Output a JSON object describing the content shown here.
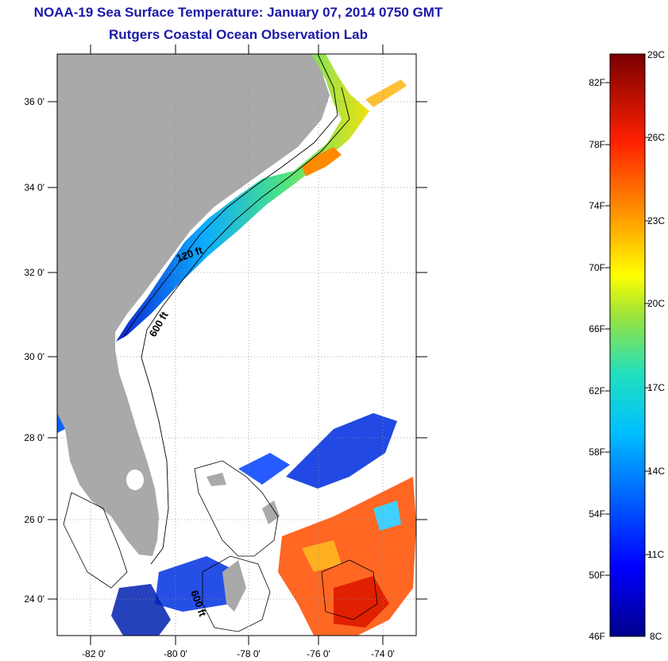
{
  "header": {
    "title": "NOAA-19 Sea Surface Temperature:  January 07, 2014 0750 GMT",
    "subtitle": "Rutgers Coastal Ocean Observation Lab"
  },
  "map": {
    "lat_labels": [
      "36 0'",
      "34 0'",
      "32 0'",
      "30 0'",
      "28 0'",
      "26 0'",
      "24 0'"
    ],
    "lon_labels": [
      "-82 0'",
      "-80 0'",
      "-78 0'",
      "-76 0'",
      "-74 0'"
    ],
    "contours": [
      "120 ft",
      "600 ft",
      "600 ft"
    ],
    "land_color": "#a9a9a9",
    "grid": true
  },
  "colorbar": {
    "fahrenheit": [
      "82F",
      "78F",
      "74F",
      "70F",
      "66F",
      "62F",
      "58F",
      "54F",
      "50F"
    ],
    "fahrenheit_min": "46F",
    "celsius_max": "29C",
    "celsius": [
      "26C",
      "23C",
      "20C",
      "17C",
      "14C",
      "11C"
    ],
    "celsius_min": "8C"
  }
}
